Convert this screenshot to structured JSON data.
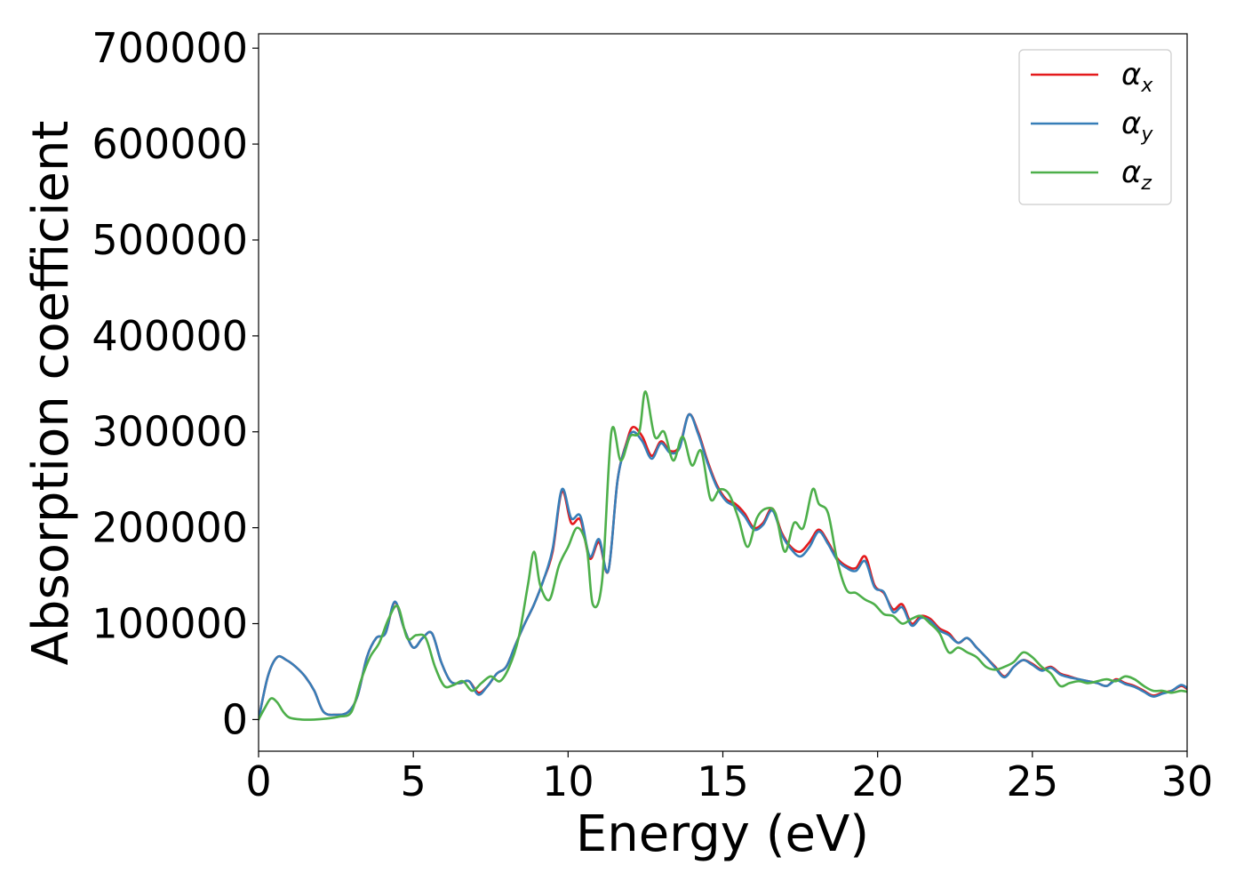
{
  "chart_data": {
    "type": "line",
    "title": "",
    "xlabel": "Energy (eV)",
    "ylabel": "Absorption coefficient",
    "xlim": [
      0,
      30
    ],
    "ylim": [
      -33000,
      715000
    ],
    "xticks": [
      0,
      5,
      10,
      15,
      20,
      25,
      30
    ],
    "xtick_labels": [
      "0",
      "5",
      "10",
      "15",
      "20",
      "25",
      "30"
    ],
    "yticks": [
      0,
      100000,
      200000,
      300000,
      400000,
      500000,
      600000,
      700000
    ],
    "ytick_labels": [
      "0",
      "100000",
      "200000",
      "300000",
      "400000",
      "500000",
      "600000",
      "700000"
    ],
    "grid": false,
    "legend_position": "top-right",
    "series": [
      {
        "name": "αx",
        "symbol": "α",
        "subscript": "x",
        "color": "#e41a1c",
        "x": [
          0,
          0.3,
          0.6,
          0.9,
          1.2,
          1.5,
          1.8,
          2.1,
          2.5,
          2.9,
          3.2,
          3.5,
          3.8,
          4.1,
          4.4,
          4.7,
          5.0,
          5.3,
          5.6,
          5.9,
          6.2,
          6.5,
          6.8,
          7.1,
          7.4,
          7.7,
          8.0,
          8.3,
          8.6,
          8.9,
          9.2,
          9.5,
          9.8,
          10.1,
          10.4,
          10.7,
          11.0,
          11.3,
          11.6,
          11.9,
          12.1,
          12.4,
          12.7,
          13.0,
          13.3,
          13.6,
          13.9,
          14.2,
          14.5,
          14.8,
          15.1,
          15.4,
          15.7,
          16.0,
          16.3,
          16.6,
          16.9,
          17.2,
          17.5,
          17.8,
          18.1,
          18.4,
          18.7,
          19.0,
          19.3,
          19.6,
          19.9,
          20.2,
          20.5,
          20.8,
          21.1,
          21.4,
          21.7,
          22.0,
          22.3,
          22.6,
          22.9,
          23.2,
          23.5,
          23.8,
          24.1,
          24.4,
          24.7,
          25.0,
          25.3,
          25.6,
          25.9,
          26.2,
          26.5,
          26.8,
          27.1,
          27.4,
          27.7,
          28.0,
          28.3,
          28.6,
          28.9,
          29.2,
          29.5,
          29.8,
          30.0
        ],
        "y": [
          0,
          45000,
          65000,
          62000,
          55000,
          45000,
          30000,
          8000,
          5000,
          8000,
          25000,
          65000,
          85000,
          90000,
          122000,
          95000,
          75000,
          85000,
          90000,
          60000,
          40000,
          38000,
          40000,
          28000,
          35000,
          48000,
          55000,
          78000,
          100000,
          120000,
          145000,
          175000,
          238000,
          205000,
          208000,
          168000,
          185000,
          155000,
          250000,
          290000,
          305000,
          295000,
          275000,
          290000,
          280000,
          285000,
          318000,
          300000,
          270000,
          245000,
          230000,
          225000,
          215000,
          200000,
          205000,
          220000,
          195000,
          180000,
          175000,
          185000,
          198000,
          185000,
          168000,
          160000,
          158000,
          170000,
          140000,
          132000,
          115000,
          120000,
          100000,
          108000,
          105000,
          95000,
          90000,
          80000,
          85000,
          75000,
          65000,
          55000,
          45000,
          55000,
          62000,
          58000,
          52000,
          55000,
          48000,
          45000,
          42000,
          40000,
          38000,
          35000,
          42000,
          38000,
          35000,
          30000,
          25000,
          28000,
          30000,
          35000,
          32000
        ]
      },
      {
        "name": "αy",
        "symbol": "α",
        "subscript": "y",
        "color": "#377eb8",
        "x": [
          0,
          0.3,
          0.6,
          0.9,
          1.2,
          1.5,
          1.8,
          2.1,
          2.5,
          2.9,
          3.2,
          3.5,
          3.8,
          4.1,
          4.4,
          4.7,
          5.0,
          5.3,
          5.6,
          5.9,
          6.2,
          6.5,
          6.8,
          7.1,
          7.4,
          7.7,
          8.0,
          8.3,
          8.6,
          8.9,
          9.2,
          9.5,
          9.8,
          10.1,
          10.4,
          10.7,
          11.0,
          11.3,
          11.6,
          11.9,
          12.1,
          12.4,
          12.7,
          13.0,
          13.3,
          13.6,
          13.9,
          14.2,
          14.5,
          14.8,
          15.1,
          15.4,
          15.7,
          16.0,
          16.3,
          16.6,
          16.9,
          17.2,
          17.5,
          17.8,
          18.1,
          18.4,
          18.7,
          19.0,
          19.3,
          19.6,
          19.9,
          20.2,
          20.5,
          20.8,
          21.1,
          21.4,
          21.7,
          22.0,
          22.3,
          22.6,
          22.9,
          23.2,
          23.5,
          23.8,
          24.1,
          24.4,
          24.7,
          25.0,
          25.3,
          25.6,
          25.9,
          26.2,
          26.5,
          26.8,
          27.1,
          27.4,
          27.7,
          28.0,
          28.3,
          28.6,
          28.9,
          29.2,
          29.5,
          29.8,
          30.0
        ],
        "y": [
          0,
          45000,
          65000,
          62000,
          55000,
          45000,
          30000,
          8000,
          5000,
          8000,
          25000,
          65000,
          85000,
          90000,
          123000,
          95000,
          75000,
          85000,
          90000,
          60000,
          40000,
          38000,
          40000,
          26000,
          35000,
          48000,
          55000,
          78000,
          100000,
          120000,
          145000,
          178000,
          240000,
          210000,
          212000,
          170000,
          188000,
          155000,
          250000,
          288000,
          300000,
          290000,
          272000,
          288000,
          278000,
          283000,
          318000,
          298000,
          268000,
          243000,
          228000,
          222000,
          212000,
          198000,
          203000,
          218000,
          193000,
          178000,
          170000,
          180000,
          196000,
          183000,
          166000,
          158000,
          155000,
          165000,
          138000,
          133000,
          112000,
          117000,
          98000,
          106000,
          103000,
          93000,
          88000,
          80000,
          85000,
          75000,
          65000,
          54000,
          44000,
          55000,
          62000,
          57000,
          51000,
          54000,
          47000,
          44000,
          42000,
          40000,
          38000,
          35000,
          41000,
          37000,
          34000,
          29000,
          24000,
          27000,
          30000,
          36000,
          33000
        ]
      },
      {
        "name": "αz",
        "symbol": "α",
        "subscript": "z",
        "color": "#4daf4a",
        "x": [
          0,
          0.2,
          0.4,
          0.6,
          0.8,
          1.0,
          1.4,
          1.8,
          2.2,
          2.6,
          3.0,
          3.3,
          3.6,
          3.9,
          4.2,
          4.5,
          4.8,
          5.1,
          5.4,
          5.7,
          6.0,
          6.3,
          6.6,
          6.9,
          7.2,
          7.5,
          7.8,
          8.1,
          8.4,
          8.7,
          8.9,
          9.1,
          9.4,
          9.7,
          10.0,
          10.3,
          10.6,
          10.8,
          11.1,
          11.4,
          11.7,
          12.0,
          12.3,
          12.5,
          12.8,
          13.1,
          13.4,
          13.7,
          14.0,
          14.3,
          14.6,
          14.9,
          15.2,
          15.5,
          15.8,
          16.1,
          16.4,
          16.7,
          17.0,
          17.3,
          17.6,
          17.9,
          18.1,
          18.4,
          18.7,
          19.0,
          19.3,
          19.6,
          19.9,
          20.2,
          20.5,
          20.8,
          21.1,
          21.4,
          21.7,
          22.0,
          22.3,
          22.6,
          22.9,
          23.2,
          23.5,
          23.8,
          24.1,
          24.4,
          24.7,
          25.0,
          25.3,
          25.6,
          25.9,
          26.2,
          26.5,
          26.8,
          27.1,
          27.4,
          27.7,
          28.0,
          28.3,
          28.6,
          28.9,
          29.2,
          29.5,
          29.8,
          30.0
        ],
        "y": [
          0,
          12000,
          22000,
          18000,
          8000,
          2000,
          0,
          0,
          1000,
          3000,
          8000,
          40000,
          65000,
          80000,
          105000,
          118000,
          85000,
          88000,
          85000,
          55000,
          35000,
          36000,
          40000,
          30000,
          38000,
          45000,
          40000,
          55000,
          85000,
          140000,
          175000,
          140000,
          125000,
          160000,
          180000,
          200000,
          180000,
          120000,
          145000,
          300000,
          270000,
          295000,
          300000,
          342000,
          295000,
          300000,
          270000,
          295000,
          265000,
          280000,
          230000,
          240000,
          235000,
          210000,
          180000,
          210000,
          220000,
          215000,
          175000,
          205000,
          200000,
          240000,
          225000,
          215000,
          165000,
          135000,
          132000,
          125000,
          120000,
          110000,
          108000,
          100000,
          105000,
          108000,
          100000,
          90000,
          70000,
          75000,
          70000,
          65000,
          55000,
          52000,
          55000,
          60000,
          70000,
          65000,
          55000,
          48000,
          35000,
          38000,
          40000,
          38000,
          40000,
          42000,
          40000,
          45000,
          42000,
          35000,
          30000,
          30000,
          28000,
          30000,
          29000
        ]
      }
    ]
  }
}
